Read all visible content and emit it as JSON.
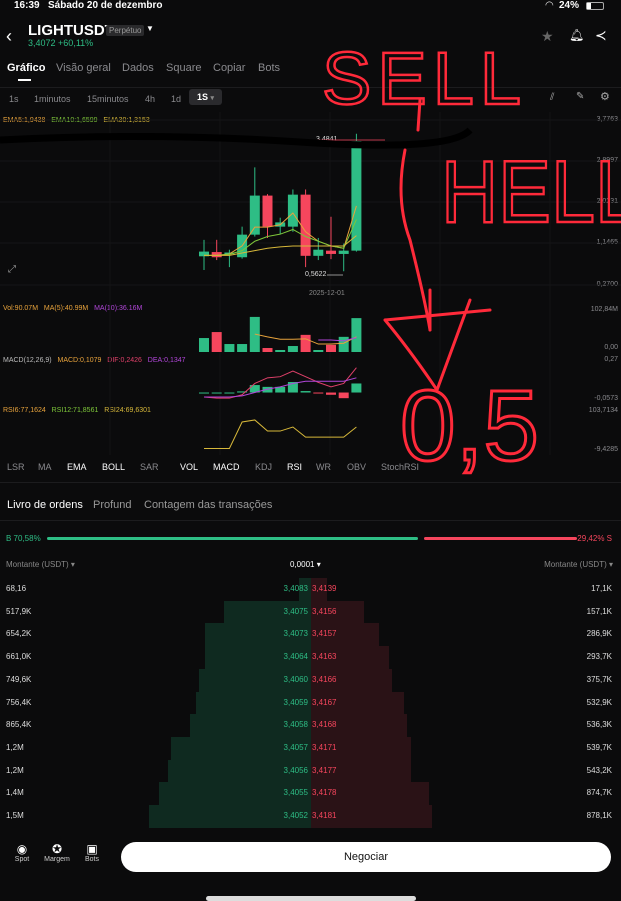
{
  "status": {
    "time": "16:39",
    "date": "Sábado 20 de dezembro",
    "battery": "24%"
  },
  "header": {
    "symbol": "LIGHTUSDT",
    "badge": "Perpétuo",
    "price": "3,4072",
    "change": "+60,11%"
  },
  "tabs": [
    "Gráfico",
    "Visão geral",
    "Dados",
    "Square",
    "Copiar",
    "Bots"
  ],
  "timeframes": [
    "1s",
    "1minutos",
    "15minutos",
    "4h",
    "1d",
    "1S"
  ],
  "ema_labels": {
    "ema5": "EMA5:1,9438",
    "ema10": "EMA10:1,6599",
    "ema30": "EMA30:1,3153"
  },
  "colors": {
    "up": "#2ebd85",
    "down": "#f6465d",
    "ema5": "#e8a33c",
    "ema10": "#7ec73a",
    "ema30": "#d7b83a",
    "purple": "#b146d9",
    "annotation": "#ff2a3a"
  },
  "price_axis": [
    "3,7763",
    "2,8997",
    "2,0231",
    "1,1465",
    "0,2700"
  ],
  "chart_data": [
    {
      "type": "candlestick",
      "x_label": "2025-12-01",
      "high_label": "3,4841",
      "low_label": "0,5622",
      "ylim": [
        0.27,
        3.7763
      ],
      "ohlc": [
        [
          0.88,
          1.23,
          0.59,
          0.98
        ],
        [
          0.97,
          1.23,
          0.8,
          0.86
        ],
        [
          0.93,
          1.02,
          0.65,
          0.96
        ],
        [
          0.86,
          1.51,
          0.83,
          1.34
        ],
        [
          1.34,
          2.77,
          1.3,
          2.17
        ],
        [
          2.17,
          2.2,
          1.27,
          1.51
        ],
        [
          1.51,
          1.7,
          1.35,
          1.6
        ],
        [
          1.51,
          2.3,
          1.4,
          2.19
        ],
        [
          2.19,
          2.3,
          0.65,
          0.89
        ],
        [
          0.89,
          1.27,
          0.8,
          1.02
        ],
        [
          1.0,
          1.72,
          0.82,
          0.93
        ],
        [
          0.93,
          1.15,
          0.5622,
          1.0
        ],
        [
          1.0,
          3.4841,
          0.98,
          3.33
        ]
      ],
      "ema5": [
        0.9,
        0.9,
        0.93,
        1.1,
        1.5,
        1.5,
        1.55,
        1.8,
        1.4,
        1.2,
        1.1,
        1.05,
        1.95
      ],
      "ema10": [
        0.9,
        0.9,
        0.92,
        1.0,
        1.2,
        1.3,
        1.35,
        1.45,
        1.3,
        1.2,
        1.1,
        1.05,
        1.66
      ],
      "ema30": [
        0.9,
        0.9,
        0.9,
        0.95,
        1.0,
        1.05,
        1.08,
        1.1,
        1.1,
        1.1,
        1.1,
        1.1,
        1.32
      ]
    },
    {
      "type": "bar",
      "name": "Vol",
      "ylim": [
        0,
        102.84
      ],
      "values": [
        35,
        50,
        20,
        20,
        88,
        10,
        5,
        15,
        43,
        5,
        18,
        38,
        85
      ],
      "up": [
        true,
        false,
        true,
        true,
        true,
        false,
        true,
        true,
        false,
        true,
        false,
        true,
        true
      ],
      "ma5": [
        null,
        null,
        null,
        null,
        45,
        38,
        32,
        32,
        33,
        20,
        20,
        22,
        38
      ],
      "ma10": [
        null,
        null,
        null,
        null,
        null,
        null,
        null,
        null,
        null,
        30,
        30,
        28,
        36
      ]
    },
    {
      "type": "bar",
      "name": "MACD",
      "ylim": [
        -0.0573,
        0.27
      ],
      "hist": [
        0,
        0,
        0,
        0.01,
        0.066,
        0.05,
        0.05,
        0.093,
        0.013,
        -0.005,
        -0.02,
        -0.05,
        0.08
      ],
      "dif": [
        -0.04,
        -0.05,
        -0.05,
        -0.02,
        0.08,
        0.13,
        0.14,
        0.19,
        0.14,
        0.09,
        0.05,
        0.08,
        0.22
      ],
      "dea": [
        -0.04,
        -0.04,
        -0.04,
        -0.03,
        0,
        0.03,
        0.05,
        0.08,
        0.1,
        0.1,
        0.1,
        0.1,
        0.13
      ]
    },
    {
      "type": "line",
      "name": "RSI",
      "ylim": [
        -9.4285,
        103.7134
      ],
      "values": [
        -5,
        -5,
        -5,
        74,
        80,
        47,
        47,
        59,
        29,
        29,
        29,
        29,
        59
      ]
    }
  ],
  "vol": {
    "label": "Vol:90.07M",
    "ma5": "MA(5):40.99M",
    "ma10": "MA(10):36.16M",
    "top": "102,84M",
    "zero": "0,00"
  },
  "macd": {
    "label": "MACD(12,26,9)",
    "macd": "MACD:0,1079",
    "dif": "DIF:0,2426",
    "dea": "DEA:0,1347",
    "top": "0,27",
    "bottom": "-0,0573"
  },
  "rsi": {
    "rsi6": "RSI6:77,1624",
    "rsi12": "RSI12:71,8561",
    "rsi24": "RSI24:69,6301",
    "top": "103,7134",
    "bottom": "-9,4285"
  },
  "indicators": [
    "LSR",
    "MA",
    "EMA",
    "BOLL",
    "SAR",
    "VOL",
    "MACD",
    "KDJ",
    "RSI",
    "WR",
    "OBV",
    "StochRSI"
  ],
  "orderbook": {
    "tabs": [
      "Livro de ordens",
      "Profund",
      "Contagem das transações"
    ],
    "buy_ratio": "B 70,58%",
    "sell_ratio": "29,42% S",
    "buy_fraction": 0.7058,
    "col_left": "Montante (USDT) ▾",
    "precision": "0,0001 ▾",
    "col_right": "Montante (USDT) ▾",
    "rows": [
      {
        "bid_amt": "68,16",
        "bid": "3,4083",
        "ask": "3,4139",
        "ask_amt": "17,1K",
        "bid_depth": 0.04,
        "ask_depth": 0.05
      },
      {
        "bid_amt": "517,9K",
        "bid": "3,4075",
        "ask": "3,4156",
        "ask_amt": "157,1K",
        "bid_depth": 0.28,
        "ask_depth": 0.17
      },
      {
        "bid_amt": "654,2K",
        "bid": "3,4073",
        "ask": "3,4157",
        "ask_amt": "286,9K",
        "bid_depth": 0.34,
        "ask_depth": 0.22
      },
      {
        "bid_amt": "661,0K",
        "bid": "3,4064",
        "ask": "3,4163",
        "ask_amt": "293,7K",
        "bid_depth": 0.34,
        "ask_depth": 0.25
      },
      {
        "bid_amt": "749,6K",
        "bid": "3,4060",
        "ask": "3,4166",
        "ask_amt": "375,7K",
        "bid_depth": 0.36,
        "ask_depth": 0.26
      },
      {
        "bid_amt": "756,4K",
        "bid": "3,4059",
        "ask": "3,4167",
        "ask_amt": "532,9K",
        "bid_depth": 0.37,
        "ask_depth": 0.3
      },
      {
        "bid_amt": "865,4K",
        "bid": "3,4058",
        "ask": "3,4168",
        "ask_amt": "536,3K",
        "bid_depth": 0.39,
        "ask_depth": 0.31
      },
      {
        "bid_amt": "1,2M",
        "bid": "3,4057",
        "ask": "3,4171",
        "ask_amt": "539,7K",
        "bid_depth": 0.45,
        "ask_depth": 0.32
      },
      {
        "bid_amt": "1,2M",
        "bid": "3,4056",
        "ask": "3,4177",
        "ask_amt": "543,2K",
        "bid_depth": 0.46,
        "ask_depth": 0.32
      },
      {
        "bid_amt": "1,4M",
        "bid": "3,4055",
        "ask": "3,4178",
        "ask_amt": "874,7K",
        "bid_depth": 0.49,
        "ask_depth": 0.38
      },
      {
        "bid_amt": "1,5M",
        "bid": "3,4052",
        "ask": "3,4181",
        "ask_amt": "878,1K",
        "bid_depth": 0.52,
        "ask_depth": 0.39
      }
    ]
  },
  "bottom": {
    "spot": "Spot",
    "margin": "Margem",
    "bots": "Bots",
    "trade": "Negociar"
  },
  "annotation": {
    "t1": "SELL",
    "t2": "HELL",
    "t3": "0,5"
  }
}
